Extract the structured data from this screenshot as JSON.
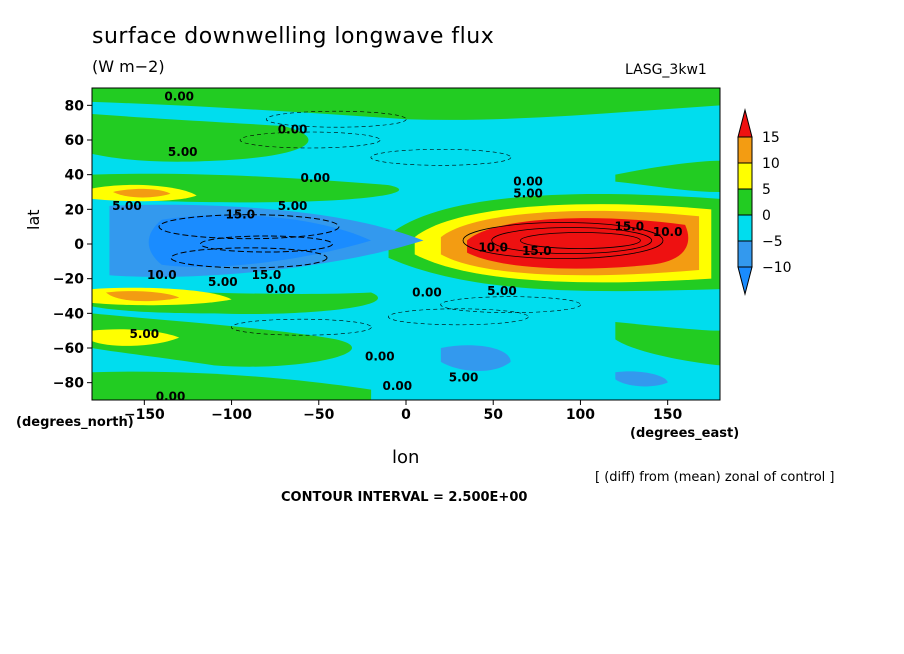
{
  "header": {
    "title": "surface downwelling longwave flux",
    "units": "(W m−2)",
    "model": "LASG_3kw1"
  },
  "axes": {
    "ylabel": "lat",
    "ylabel_units": "(degrees_north)",
    "xlabel": "lon",
    "xlabel_units": "(degrees_east)"
  },
  "footnote": "[ (diff) from (mean) zonal of control ]",
  "contour_interval": "CONTOUR INTERVAL = 2.500E+00",
  "colors": {
    "le_m10": "#1a8cff",
    "m10_m5": "#3399ee",
    "m5_0": "#00ddee",
    "0_5": "#22cc22",
    "5_10": "#ffff00",
    "10_15": "#f39c12",
    "ge_15": "#ee1111"
  },
  "chart_data": {
    "type": "heatmap",
    "title": "surface downwelling longwave flux",
    "subtitle": "(W m−2)",
    "xlabel": "lon",
    "ylabel": "lat",
    "xlim": [
      -180,
      180
    ],
    "ylim": [
      -90,
      90
    ],
    "x_ticks": [
      -150,
      -100,
      -50,
      0,
      50,
      100,
      150
    ],
    "x_tick_labels": [
      "−150",
      "−100",
      "−50",
      "0",
      "50",
      "100",
      "150"
    ],
    "y_ticks": [
      80,
      60,
      40,
      20,
      0,
      -20,
      -40,
      -60,
      -80
    ],
    "y_tick_labels": [
      "80",
      "60",
      "40",
      "20",
      "0",
      "−20",
      "−40",
      "−60",
      "−80"
    ],
    "colorbar": {
      "levels": [
        15,
        10,
        5,
        0,
        -5,
        -10
      ],
      "labels": [
        "15",
        "10",
        "5",
        "0",
        "−5",
        "−10"
      ]
    },
    "contour_labels": [
      {
        "text": "0.00",
        "lon": -130,
        "lat": 85
      },
      {
        "text": "0.00",
        "lon": -65,
        "lat": 66
      },
      {
        "text": "5.00",
        "lon": -128,
        "lat": 53
      },
      {
        "text": "0.00",
        "lon": -52,
        "lat": 38
      },
      {
        "text": "5.00",
        "lon": -160,
        "lat": 22
      },
      {
        "text": "5.00",
        "lon": -65,
        "lat": 22
      },
      {
        "text": "15.0",
        "lon": -95,
        "lat": 17
      },
      {
        "text": "0.00",
        "lon": 70,
        "lat": 36
      },
      {
        "text": "5.00",
        "lon": 70,
        "lat": 29
      },
      {
        "text": "15.0",
        "lon": 128,
        "lat": 10
      },
      {
        "text": "10.0",
        "lon": 150,
        "lat": 7
      },
      {
        "text": "10.0",
        "lon": 50,
        "lat": -2
      },
      {
        "text": "15.0",
        "lon": 75,
        "lat": -4
      },
      {
        "text": "10.0",
        "lon": -140,
        "lat": -18
      },
      {
        "text": "5.00",
        "lon": -105,
        "lat": -22
      },
      {
        "text": "15.0",
        "lon": -80,
        "lat": -18
      },
      {
        "text": "0.00",
        "lon": -72,
        "lat": -26
      },
      {
        "text": "0.00",
        "lon": 12,
        "lat": -28
      },
      {
        "text": "5.00",
        "lon": 55,
        "lat": -27
      },
      {
        "text": "5.00",
        "lon": -150,
        "lat": -52
      },
      {
        "text": "0.00",
        "lon": -15,
        "lat": -65
      },
      {
        "text": "5.00",
        "lon": 33,
        "lat": -77
      },
      {
        "text": "0.00",
        "lon": -5,
        "lat": -82
      },
      {
        "text": "0.00",
        "lon": -135,
        "lat": -88
      }
    ]
  }
}
